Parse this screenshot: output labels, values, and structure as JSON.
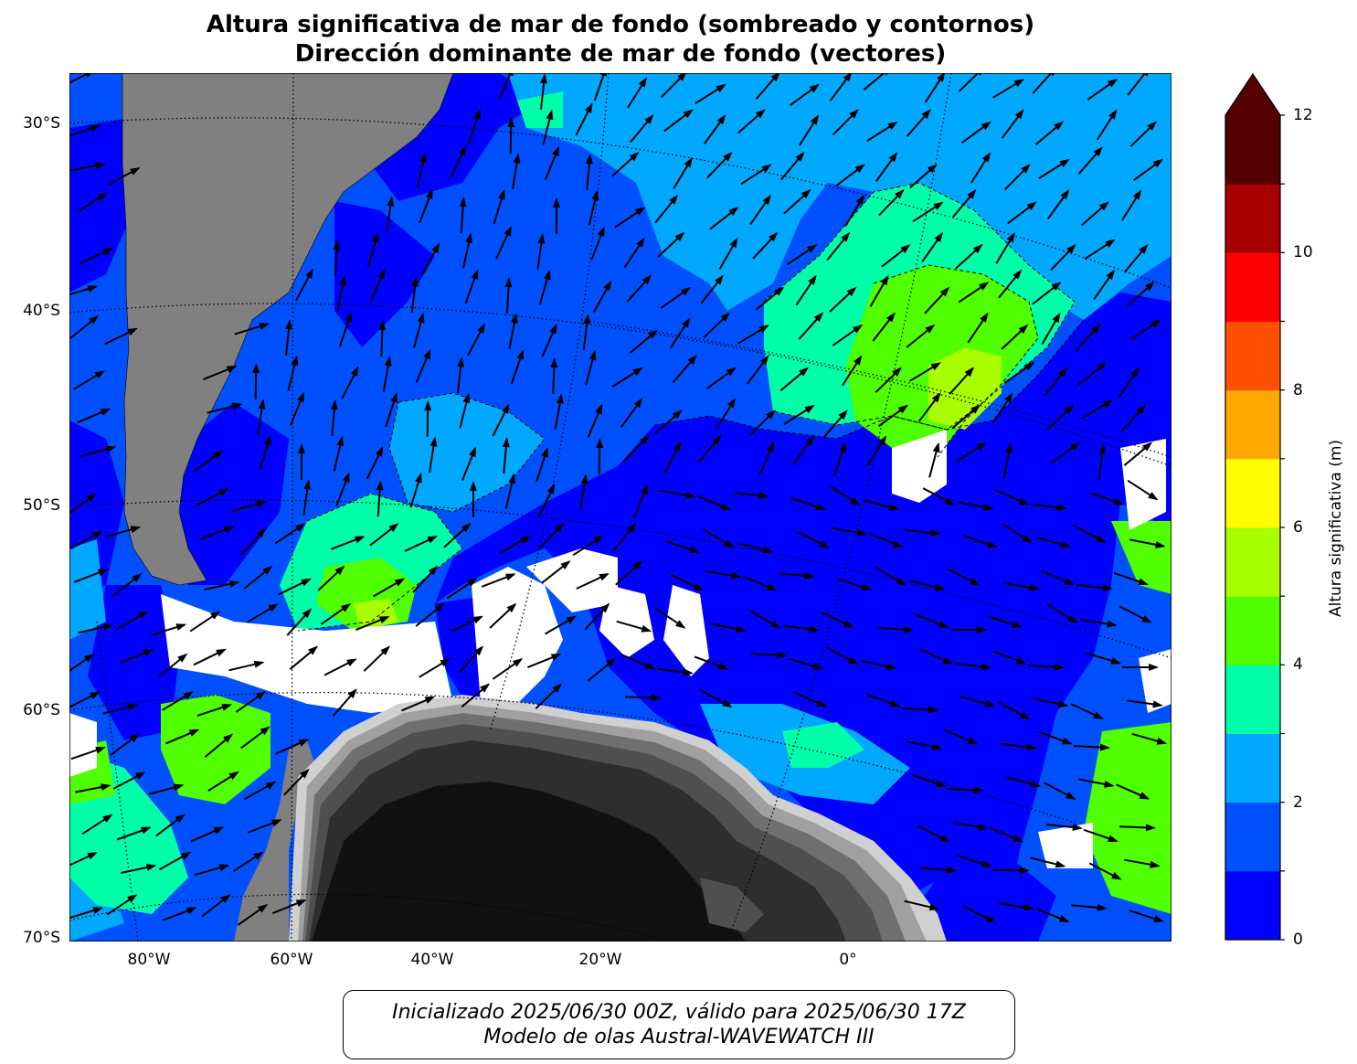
{
  "title_line1": "Altura significativa de mar de fondo (sombreado y contornos)",
  "title_line2": "Dirección dominante de mar de fondo (vectores)",
  "footer_line1": "Inicializado 2025/06/30 00Z, válido para 2025/06/30 17Z",
  "footer_line2": "Modelo de olas Austral-WAVEWATCH III",
  "lat_labels": [
    "30°S",
    "40°S",
    "50°S",
    "60°S",
    "70°S"
  ],
  "lon_labels": [
    "80°W",
    "60°W",
    "40°W",
    "20°W",
    "0°"
  ],
  "colors": {
    "land": "#808080",
    "ice": "#ffffff",
    "antarctica": [
      "#111111",
      "#2e2e2e",
      "#4f4f4f",
      "#6f6f6f",
      "#a0a0a0",
      "#d0d0d0"
    ],
    "vectors": "#000000"
  },
  "chart_data": {
    "type": "heatmap",
    "map_extent": {
      "lon": [
        "90°W",
        "60°E"
      ],
      "lat": [
        "28°S",
        "70°S"
      ]
    },
    "colorbar": {
      "label": "Altura significativa (m)",
      "unit": "m",
      "range": [
        0,
        12
      ],
      "extend": "max",
      "levels": [
        0,
        1,
        2,
        3,
        4,
        5,
        6,
        7,
        8,
        9,
        10,
        11,
        12
      ],
      "tick_labels": [
        "0",
        "2",
        "4",
        "6",
        "8",
        "10",
        "12"
      ],
      "colors": [
        "#0000ff",
        "#0050ff",
        "#00a8ff",
        "#00ffa8",
        "#50ff00",
        "#a8ff00",
        "#ffff00",
        "#ffa800",
        "#ff5000",
        "#ff0000",
        "#a80000",
        "#550000"
      ],
      "extend_color": "#550000"
    },
    "gridlines": {
      "style": "dotted",
      "color": "#000000"
    },
    "vector_field": {
      "description_variable": "dominant swell direction",
      "color": "#000000"
    }
  }
}
